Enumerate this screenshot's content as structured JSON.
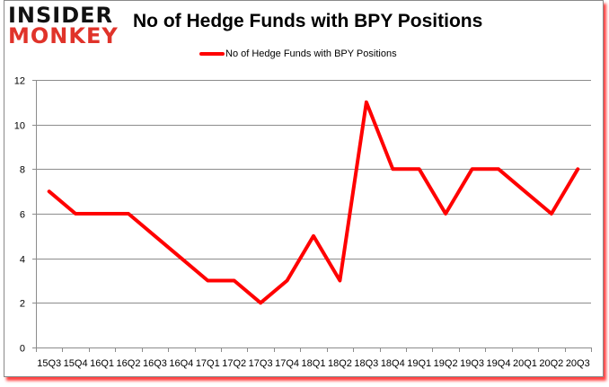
{
  "logo": {
    "line1": "INSIDER",
    "line2": "MONKEY"
  },
  "chart_data": {
    "type": "line",
    "title": "No of Hedge Funds with BPY Positions",
    "xlabel": "",
    "ylabel": "",
    "categories": [
      "15Q3",
      "15Q4",
      "16Q1",
      "16Q2",
      "16Q3",
      "16Q4",
      "17Q1",
      "17Q2",
      "17Q3",
      "17Q4",
      "18Q1",
      "18Q2",
      "18Q3",
      "18Q4",
      "19Q1",
      "19Q2",
      "19Q3",
      "19Q4",
      "20Q1",
      "20Q2",
      "20Q3"
    ],
    "series": [
      {
        "name": "No of Hedge Funds with BPY Positions",
        "color": "#ff0000",
        "values": [
          7,
          6,
          6,
          6,
          5,
          4,
          3,
          3,
          2,
          3,
          5,
          3,
          11,
          8,
          8,
          6,
          8,
          8,
          7,
          6,
          8
        ]
      }
    ],
    "ylim": [
      0,
      12
    ],
    "yticks": [
      0,
      2,
      4,
      6,
      8,
      10,
      12
    ],
    "grid": true,
    "legend_position": "top"
  }
}
